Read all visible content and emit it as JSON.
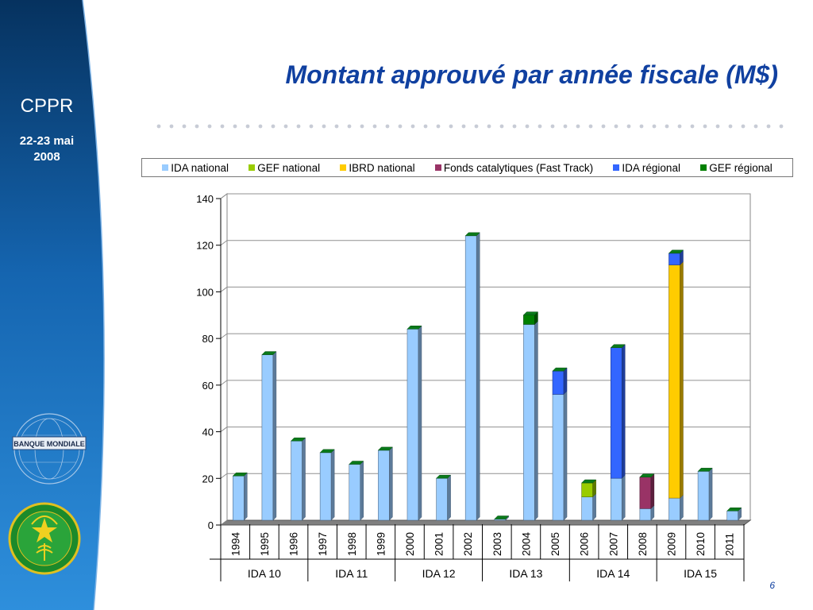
{
  "sidebar": {
    "title": "CPPR",
    "date_line1": "22-23 mai",
    "date_line2": "2008",
    "logo_bank_text": "BANQUE MONDIALE",
    "colors": {
      "bg_dark": "#06325f",
      "bg_light": "#2a8ad6"
    }
  },
  "slide": {
    "title": "Montant approuvé par année fiscale (M$)",
    "page_number": "6",
    "title_color": "#1040a0"
  },
  "legend": [
    {
      "label": "IDA national",
      "color": "#99ccff"
    },
    {
      "label": "GEF national",
      "color": "#99cc00"
    },
    {
      "label": "IBRD national",
      "color": "#ffcc00"
    },
    {
      "label": "Fonds catalytiques (Fast Track)",
      "color": "#993366"
    },
    {
      "label": "IDA régional",
      "color": "#3366ff"
    },
    {
      "label": "GEF régional",
      "color": "#008000"
    }
  ],
  "chart_data": {
    "type": "bar",
    "stacked": true,
    "categories": [
      "1994",
      "1995",
      "1996",
      "1997",
      "1998",
      "1999",
      "2000",
      "2001",
      "2002",
      "2003",
      "2004",
      "2005",
      "2006",
      "2007",
      "2008",
      "2009",
      "2010",
      "2011"
    ],
    "groups": [
      {
        "label": "IDA 10",
        "categories": [
          "1994",
          "1995",
          "1996"
        ]
      },
      {
        "label": "IDA 11",
        "categories": [
          "1997",
          "1998",
          "1999"
        ]
      },
      {
        "label": "IDA 12",
        "categories": [
          "2000",
          "2001",
          "2002"
        ]
      },
      {
        "label": "IDA 13",
        "categories": [
          "2003",
          "2004",
          "2005"
        ]
      },
      {
        "label": "IDA 14",
        "categories": [
          "2006",
          "2007",
          "2008"
        ]
      },
      {
        "label": "IDA 15",
        "categories": [
          "2009",
          "2010",
          "2011"
        ]
      }
    ],
    "series": [
      {
        "name": "IDA national",
        "color": "#99ccff",
        "values": [
          19,
          71,
          34,
          29,
          24,
          30,
          82,
          18,
          122,
          0.5,
          84,
          54,
          10,
          18,
          5,
          9.5,
          21,
          4
        ]
      },
      {
        "name": "GEF national",
        "color": "#99cc00",
        "values": [
          0,
          0,
          0,
          0,
          0,
          0,
          0,
          0,
          0,
          0,
          0,
          0,
          6,
          0,
          0,
          0,
          0,
          0
        ]
      },
      {
        "name": "IBRD national",
        "color": "#ffcc00",
        "values": [
          0,
          0,
          0,
          0,
          0,
          0,
          0,
          0,
          0,
          0,
          0,
          0,
          0,
          0,
          0,
          100,
          0,
          0
        ]
      },
      {
        "name": "Fonds catalytiques (Fast Track)",
        "color": "#993366",
        "values": [
          0,
          0,
          0,
          0,
          0,
          0,
          0,
          0,
          0,
          0,
          0,
          0,
          0,
          0,
          13.5,
          0,
          0,
          0
        ]
      },
      {
        "name": "IDA régional",
        "color": "#3366ff",
        "values": [
          0,
          0,
          0,
          0,
          0,
          0,
          0,
          0,
          0,
          0,
          0,
          10,
          0,
          56,
          0,
          5,
          0,
          0
        ]
      },
      {
        "name": "GEF régional",
        "color": "#008000",
        "values": [
          0,
          0,
          0,
          0,
          0,
          0,
          0,
          0,
          0,
          0,
          4,
          0,
          0,
          0,
          0,
          0,
          0,
          0
        ]
      }
    ],
    "y_ticks": [
      "0",
      "20",
      "40",
      "60",
      "80",
      "100",
      "120",
      "140"
    ],
    "ylim": [
      0,
      140
    ],
    "grid": true,
    "legend_position": "top"
  }
}
